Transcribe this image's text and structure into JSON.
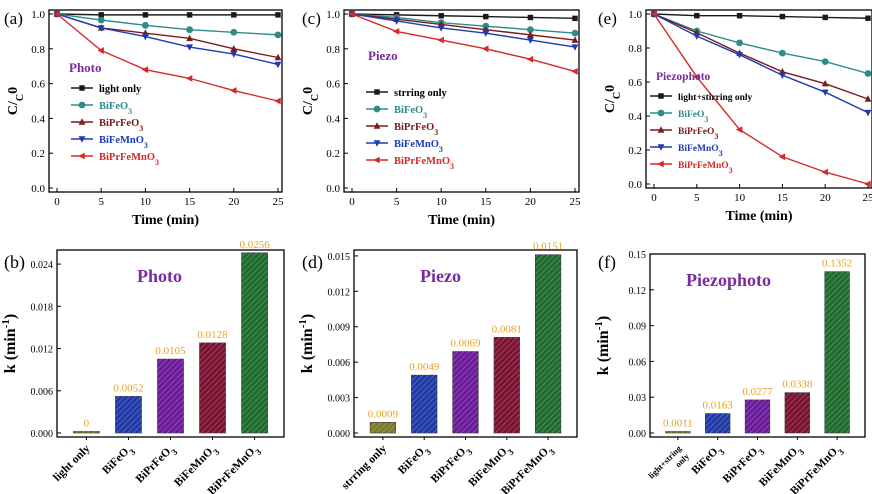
{
  "chart_data": [
    {
      "panel": "(a)",
      "type": "line",
      "inset_label": "Photo",
      "xlabel": "Time (min)",
      "ylabel": "C/C0",
      "xlim": [
        0,
        25
      ],
      "ylim": [
        0.0,
        1.0
      ],
      "x_ticks": [
        "0",
        "5",
        "10",
        "15",
        "20",
        "25"
      ],
      "y_ticks": [
        "0.0",
        "0.2",
        "0.4",
        "0.6",
        "0.8",
        "1.0"
      ],
      "x": [
        0,
        5,
        10,
        15,
        20,
        25
      ],
      "legend_position": "middle-left",
      "series": [
        {
          "name": "light only",
          "marker": "square",
          "color": "#1a1a1a",
          "values": [
            1.0,
            0.995,
            0.995,
            0.995,
            0.995,
            0.995
          ]
        },
        {
          "name": "BiFeO3",
          "marker": "circle",
          "color": "#2e8b8b",
          "values": [
            1.0,
            0.965,
            0.935,
            0.91,
            0.895,
            0.88
          ]
        },
        {
          "name": "BiPrFeO3",
          "marker": "triangle-up",
          "color": "#7a1c1c",
          "values": [
            1.0,
            0.92,
            0.89,
            0.86,
            0.8,
            0.75
          ]
        },
        {
          "name": "BiFeMnO3",
          "marker": "triangle-down",
          "color": "#1f3bb3",
          "values": [
            1.0,
            0.92,
            0.87,
            0.81,
            0.77,
            0.71
          ]
        },
        {
          "name": "BiPrFeMnO3",
          "marker": "triangle-left",
          "color": "#d42a2a",
          "values": [
            1.0,
            0.79,
            0.68,
            0.63,
            0.56,
            0.5
          ]
        }
      ]
    },
    {
      "panel": "(c)",
      "type": "line",
      "inset_label": "Piezo",
      "xlabel": "Time (min)",
      "ylabel": "C/C0",
      "xlim": [
        0,
        25
      ],
      "ylim": [
        0.0,
        1.0
      ],
      "x_ticks": [
        "0",
        "5",
        "10",
        "15",
        "20",
        "25"
      ],
      "y_ticks": [
        "0.0",
        "0.2",
        "0.4",
        "0.6",
        "0.8",
        "1.0"
      ],
      "x": [
        0,
        5,
        10,
        15,
        20,
        25
      ],
      "legend_position": "middle-left",
      "series": [
        {
          "name": "strring only",
          "marker": "square",
          "color": "#1a1a1a",
          "values": [
            1.0,
            0.995,
            0.99,
            0.985,
            0.98,
            0.975
          ]
        },
        {
          "name": "BiFeO3",
          "marker": "circle",
          "color": "#2e8b8b",
          "values": [
            1.0,
            0.98,
            0.95,
            0.93,
            0.91,
            0.89
          ]
        },
        {
          "name": "BiPrFeO3",
          "marker": "triangle-up",
          "color": "#7a1c1c",
          "values": [
            1.0,
            0.97,
            0.94,
            0.91,
            0.88,
            0.85
          ]
        },
        {
          "name": "BiFeMnO3",
          "marker": "triangle-down",
          "color": "#1f3bb3",
          "values": [
            1.0,
            0.96,
            0.92,
            0.89,
            0.85,
            0.81
          ]
        },
        {
          "name": "BiPrFeMnO3",
          "marker": "triangle-left",
          "color": "#d42a2a",
          "values": [
            1.0,
            0.9,
            0.85,
            0.8,
            0.74,
            0.67
          ]
        }
      ]
    },
    {
      "panel": "(e)",
      "type": "line",
      "inset_label": "Piezophoto",
      "xlabel": "Time (min)",
      "ylabel": "C/C0",
      "xlim": [
        0,
        25
      ],
      "ylim": [
        0.0,
        1.0
      ],
      "x_ticks": [
        "0",
        "5",
        "10",
        "15",
        "20",
        "25"
      ],
      "y_ticks": [
        "0.0",
        "0.2",
        "0.4",
        "0.6",
        "0.8",
        "1.0"
      ],
      "x": [
        0,
        5,
        10,
        15,
        20,
        25
      ],
      "legend_position": "middle-left",
      "series": [
        {
          "name": "light+stirring only",
          "marker": "square",
          "color": "#1a1a1a",
          "values": [
            1.0,
            0.99,
            0.99,
            0.985,
            0.98,
            0.975
          ]
        },
        {
          "name": "BiFeO3",
          "marker": "circle",
          "color": "#2e8b8b",
          "values": [
            1.0,
            0.9,
            0.83,
            0.77,
            0.72,
            0.65
          ]
        },
        {
          "name": "BiPrFeO3",
          "marker": "triangle-up",
          "color": "#7a1c1c",
          "values": [
            1.0,
            0.89,
            0.77,
            0.66,
            0.59,
            0.5
          ]
        },
        {
          "name": "BiFeMnO3",
          "marker": "triangle-down",
          "color": "#1f3bb3",
          "values": [
            1.0,
            0.87,
            0.76,
            0.64,
            0.54,
            0.42
          ]
        },
        {
          "name": "BiPrFeMnO3",
          "marker": "triangle-left",
          "color": "#d42a2a",
          "values": [
            1.0,
            0.63,
            0.32,
            0.16,
            0.07,
            0.0
          ]
        }
      ]
    },
    {
      "panel": "(b)",
      "type": "bar",
      "inset_label": "Photo",
      "ylabel": "k (min-1)",
      "ylim": [
        0,
        0.026
      ],
      "y_ticks": [
        "0.000",
        "0.006",
        "0.012",
        "0.018",
        "0.024"
      ],
      "y_tick_values": [
        0,
        0.006,
        0.012,
        0.018,
        0.024
      ],
      "categories": [
        "light only",
        "BiFeO3",
        "BiPrFeO3",
        "BiFeMnO3",
        "BiPrFeMnO3"
      ],
      "values": [
        0,
        0.0052,
        0.0105,
        0.0128,
        0.0256
      ],
      "labels": [
        "0",
        "0.0052",
        "0.0105",
        "0.0128",
        "0.0256"
      ],
      "colors": [
        "#7d7a2a",
        "#1f3aa6",
        "#6a1a9a",
        "#7a1230",
        "#1e6b2e"
      ]
    },
    {
      "panel": "(d)",
      "type": "bar",
      "inset_label": "Piezo",
      "ylabel": "k (min-1)",
      "ylim": [
        0,
        0.0155
      ],
      "y_ticks": [
        "0.000",
        "0.003",
        "0.006",
        "0.009",
        "0.012",
        "0.015"
      ],
      "y_tick_values": [
        0,
        0.003,
        0.006,
        0.009,
        0.012,
        0.015
      ],
      "categories": [
        "strring only",
        "BiFeO3",
        "BiPrFeO3",
        "BiFeMnO3",
        "BiPrFeMnO3"
      ],
      "values": [
        0.0009,
        0.0049,
        0.0069,
        0.0081,
        0.0151
      ],
      "labels": [
        "0.0009",
        "0.0049",
        "0.0069",
        "0.0081",
        "0.0151"
      ],
      "colors": [
        "#7d7a2a",
        "#1f3aa6",
        "#6a1a9a",
        "#7a1230",
        "#1e6b2e"
      ]
    },
    {
      "panel": "(f)",
      "type": "bar",
      "inset_label": "Piezophoto",
      "ylabel": "k (min-1)",
      "ylim": [
        0,
        0.15
      ],
      "y_ticks": [
        "0.00",
        "0.03",
        "0.06",
        "0.09",
        "0.12",
        "0.15"
      ],
      "y_tick_values": [
        0,
        0.03,
        0.06,
        0.09,
        0.12,
        0.15
      ],
      "categories": [
        "light+string only",
        "BiFeO3",
        "BiPrFeO3",
        "BiFeMnO3",
        "BiPrFeMnO3"
      ],
      "values": [
        0.0011,
        0.0163,
        0.0277,
        0.0338,
        0.1352
      ],
      "labels": [
        "0.0011",
        "0.0163",
        "0.0277",
        "0.0338",
        "0.1352"
      ],
      "colors": [
        "#7d7a2a",
        "#1f3aa6",
        "#6a1a9a",
        "#7a1230",
        "#1e6b2e"
      ]
    }
  ],
  "colors": {
    "inset_label": "#7a2aa0",
    "bar_value_label": "#e8a020",
    "axis": "#000000"
  }
}
